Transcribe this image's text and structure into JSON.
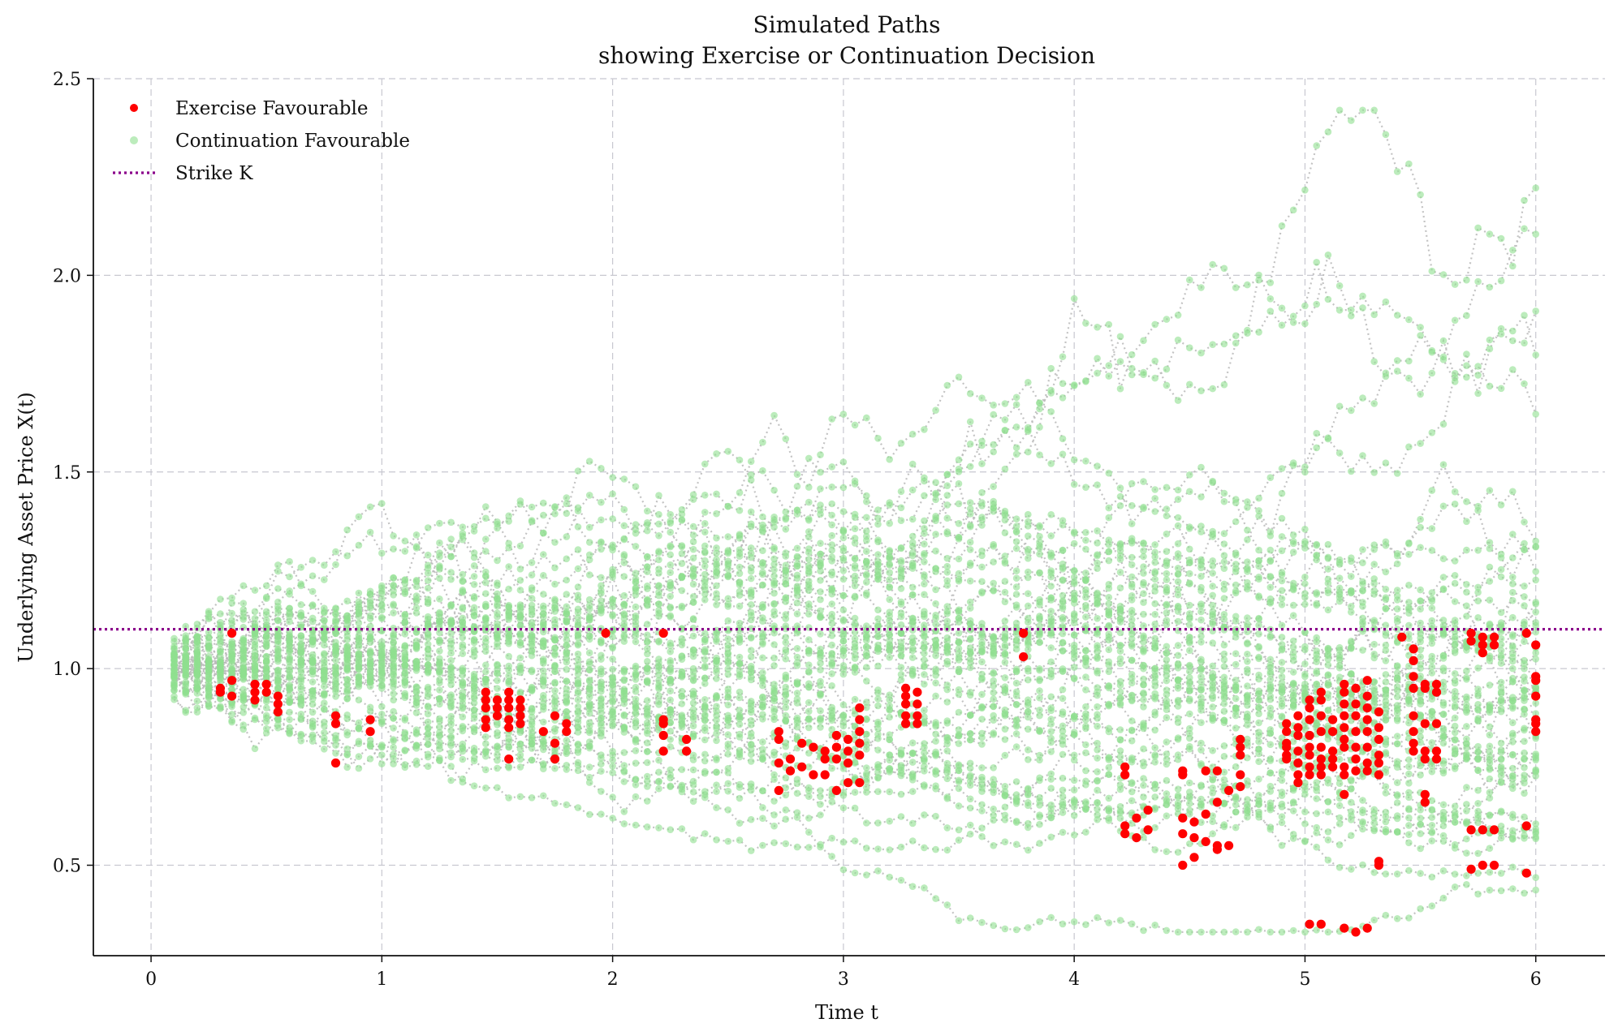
{
  "chart_data": {
    "type": "scatter",
    "title": "Simulated Paths",
    "subtitle": "showing Exercise or Continuation Decision",
    "xlabel": "Time t",
    "ylabel": "Underlying Asset Price X(t)",
    "xlim": [
      -0.25,
      6.3
    ],
    "ylim": [
      0.27,
      2.5
    ],
    "xticks": [
      0,
      1,
      2,
      3,
      4,
      5,
      6
    ],
    "xtick_labels": [
      "0",
      "1",
      "2",
      "3",
      "4",
      "5",
      "6"
    ],
    "yticks": [
      0.5,
      1.0,
      1.5,
      2.0,
      2.5
    ],
    "ytick_labels": [
      "0.5",
      "1.0",
      "1.5",
      "2.0",
      "2.5"
    ],
    "grid": true,
    "legend_position": "top-left",
    "strike": 1.1,
    "colors": {
      "exercise": "#ff0000",
      "continuation": "#90e090",
      "strike": "#8b008b",
      "path_line": "#b8b8b8",
      "grid": "#c8c8d0"
    },
    "legend": [
      {
        "label": "Exercise Favourable",
        "kind": "exercise"
      },
      {
        "label": "Continuation Favourable",
        "kind": "continuation"
      },
      {
        "label": "Strike K",
        "kind": "strike"
      }
    ],
    "time_steps": {
      "start": 0.1,
      "end": 6.0,
      "step": 0.05
    },
    "num_paths": 50,
    "exercise_points": [
      [
        0.3,
        0.95
      ],
      [
        0.3,
        0.94
      ],
      [
        0.35,
        0.97
      ],
      [
        0.35,
        0.93
      ],
      [
        0.35,
        1.09
      ],
      [
        0.45,
        0.96
      ],
      [
        0.45,
        0.94
      ],
      [
        0.45,
        0.92
      ],
      [
        0.5,
        0.96
      ],
      [
        0.5,
        0.94
      ],
      [
        0.55,
        0.93
      ],
      [
        0.55,
        0.91
      ],
      [
        0.55,
        0.89
      ],
      [
        0.8,
        0.88
      ],
      [
        0.8,
        0.86
      ],
      [
        0.8,
        0.76
      ],
      [
        0.95,
        0.87
      ],
      [
        0.95,
        0.84
      ],
      [
        1.97,
        1.09
      ],
      [
        1.45,
        0.94
      ],
      [
        1.45,
        0.92
      ],
      [
        1.45,
        0.9
      ],
      [
        1.45,
        0.87
      ],
      [
        1.45,
        0.85
      ],
      [
        1.5,
        0.92
      ],
      [
        1.5,
        0.9
      ],
      [
        1.5,
        0.88
      ],
      [
        1.55,
        0.94
      ],
      [
        1.55,
        0.92
      ],
      [
        1.55,
        0.9
      ],
      [
        1.55,
        0.87
      ],
      [
        1.55,
        0.85
      ],
      [
        1.55,
        0.77
      ],
      [
        1.6,
        0.92
      ],
      [
        1.6,
        0.9
      ],
      [
        1.6,
        0.88
      ],
      [
        1.6,
        0.86
      ],
      [
        1.7,
        0.84
      ],
      [
        1.75,
        0.88
      ],
      [
        1.75,
        0.81
      ],
      [
        1.75,
        0.77
      ],
      [
        1.8,
        0.86
      ],
      [
        1.8,
        0.84
      ],
      [
        2.22,
        1.09
      ],
      [
        2.22,
        0.87
      ],
      [
        2.22,
        0.86
      ],
      [
        2.22,
        0.83
      ],
      [
        2.22,
        0.79
      ],
      [
        2.32,
        0.82
      ],
      [
        2.32,
        0.79
      ],
      [
        2.72,
        0.84
      ],
      [
        2.72,
        0.82
      ],
      [
        2.72,
        0.76
      ],
      [
        2.72,
        0.69
      ],
      [
        2.77,
        0.77
      ],
      [
        2.77,
        0.74
      ],
      [
        2.82,
        0.81
      ],
      [
        2.82,
        0.75
      ],
      [
        2.87,
        0.8
      ],
      [
        2.87,
        0.73
      ],
      [
        2.92,
        0.79
      ],
      [
        2.92,
        0.77
      ],
      [
        2.92,
        0.73
      ],
      [
        2.97,
        0.83
      ],
      [
        2.97,
        0.8
      ],
      [
        2.97,
        0.77
      ],
      [
        2.97,
        0.69
      ],
      [
        3.02,
        0.82
      ],
      [
        3.02,
        0.79
      ],
      [
        3.02,
        0.76
      ],
      [
        3.02,
        0.71
      ],
      [
        3.07,
        0.9
      ],
      [
        3.07,
        0.87
      ],
      [
        3.07,
        0.84
      ],
      [
        3.07,
        0.81
      ],
      [
        3.07,
        0.78
      ],
      [
        3.07,
        0.71
      ],
      [
        3.27,
        0.95
      ],
      [
        3.27,
        0.93
      ],
      [
        3.27,
        0.91
      ],
      [
        3.27,
        0.88
      ],
      [
        3.27,
        0.86
      ],
      [
        3.32,
        0.94
      ],
      [
        3.32,
        0.91
      ],
      [
        3.32,
        0.88
      ],
      [
        3.32,
        0.86
      ],
      [
        3.78,
        1.09
      ],
      [
        3.78,
        1.03
      ],
      [
        4.22,
        0.75
      ],
      [
        4.22,
        0.73
      ],
      [
        4.22,
        0.6
      ],
      [
        4.22,
        0.58
      ],
      [
        4.27,
        0.62
      ],
      [
        4.27,
        0.57
      ],
      [
        4.32,
        0.64
      ],
      [
        4.32,
        0.59
      ],
      [
        4.47,
        0.74
      ],
      [
        4.47,
        0.73
      ],
      [
        4.47,
        0.62
      ],
      [
        4.47,
        0.58
      ],
      [
        4.47,
        0.5
      ],
      [
        4.52,
        0.61
      ],
      [
        4.52,
        0.57
      ],
      [
        4.52,
        0.52
      ],
      [
        4.57,
        0.74
      ],
      [
        4.57,
        0.63
      ],
      [
        4.57,
        0.56
      ],
      [
        4.62,
        0.74
      ],
      [
        4.62,
        0.66
      ],
      [
        4.62,
        0.55
      ],
      [
        4.62,
        0.54
      ],
      [
        4.67,
        0.69
      ],
      [
        4.67,
        0.55
      ],
      [
        4.72,
        0.82
      ],
      [
        4.72,
        0.8
      ],
      [
        4.72,
        0.78
      ],
      [
        4.72,
        0.73
      ],
      [
        4.72,
        0.7
      ],
      [
        4.92,
        0.86
      ],
      [
        4.92,
        0.84
      ],
      [
        4.92,
        0.81
      ],
      [
        4.92,
        0.8
      ],
      [
        4.92,
        0.78
      ],
      [
        4.92,
        0.77
      ],
      [
        4.97,
        0.88
      ],
      [
        4.97,
        0.85
      ],
      [
        4.97,
        0.83
      ],
      [
        4.97,
        0.79
      ],
      [
        4.97,
        0.76
      ],
      [
        4.97,
        0.73
      ],
      [
        4.97,
        0.71
      ],
      [
        5.02,
        0.92
      ],
      [
        5.02,
        0.9
      ],
      [
        5.02,
        0.87
      ],
      [
        5.02,
        0.83
      ],
      [
        5.02,
        0.8
      ],
      [
        5.02,
        0.78
      ],
      [
        5.02,
        0.75
      ],
      [
        5.02,
        0.73
      ],
      [
        5.02,
        0.35
      ],
      [
        5.07,
        0.94
      ],
      [
        5.07,
        0.92
      ],
      [
        5.07,
        0.88
      ],
      [
        5.07,
        0.84
      ],
      [
        5.07,
        0.8
      ],
      [
        5.07,
        0.77
      ],
      [
        5.07,
        0.75
      ],
      [
        5.07,
        0.73
      ],
      [
        5.07,
        0.35
      ],
      [
        5.12,
        0.87
      ],
      [
        5.12,
        0.84
      ],
      [
        5.12,
        0.79
      ],
      [
        5.12,
        0.77
      ],
      [
        5.12,
        0.75
      ],
      [
        5.17,
        0.96
      ],
      [
        5.17,
        0.94
      ],
      [
        5.17,
        0.91
      ],
      [
        5.17,
        0.88
      ],
      [
        5.17,
        0.85
      ],
      [
        5.17,
        0.82
      ],
      [
        5.17,
        0.8
      ],
      [
        5.17,
        0.75
      ],
      [
        5.17,
        0.73
      ],
      [
        5.17,
        0.68
      ],
      [
        5.17,
        0.34
      ],
      [
        5.22,
        0.95
      ],
      [
        5.22,
        0.91
      ],
      [
        5.22,
        0.88
      ],
      [
        5.22,
        0.84
      ],
      [
        5.22,
        0.8
      ],
      [
        5.22,
        0.77
      ],
      [
        5.22,
        0.74
      ],
      [
        5.22,
        0.33
      ],
      [
        5.27,
        0.97
      ],
      [
        5.27,
        0.93
      ],
      [
        5.27,
        0.9
      ],
      [
        5.27,
        0.87
      ],
      [
        5.27,
        0.84
      ],
      [
        5.27,
        0.8
      ],
      [
        5.27,
        0.76
      ],
      [
        5.27,
        0.74
      ],
      [
        5.27,
        0.34
      ],
      [
        5.32,
        0.89
      ],
      [
        5.32,
        0.85
      ],
      [
        5.32,
        0.82
      ],
      [
        5.32,
        0.78
      ],
      [
        5.32,
        0.76
      ],
      [
        5.32,
        0.73
      ],
      [
        5.32,
        0.51
      ],
      [
        5.32,
        0.5
      ],
      [
        5.42,
        1.08
      ],
      [
        5.47,
        1.05
      ],
      [
        5.47,
        1.02
      ],
      [
        5.47,
        0.98
      ],
      [
        5.47,
        0.95
      ],
      [
        5.47,
        0.88
      ],
      [
        5.47,
        0.84
      ],
      [
        5.47,
        0.81
      ],
      [
        5.47,
        0.79
      ],
      [
        5.52,
        0.96
      ],
      [
        5.52,
        0.95
      ],
      [
        5.52,
        0.86
      ],
      [
        5.52,
        0.79
      ],
      [
        5.52,
        0.77
      ],
      [
        5.52,
        0.68
      ],
      [
        5.52,
        0.66
      ],
      [
        5.57,
        0.96
      ],
      [
        5.57,
        0.94
      ],
      [
        5.57,
        0.86
      ],
      [
        5.57,
        0.79
      ],
      [
        5.57,
        0.77
      ],
      [
        5.72,
        1.09
      ],
      [
        5.72,
        1.07
      ],
      [
        5.72,
        0.59
      ],
      [
        5.72,
        0.49
      ],
      [
        5.77,
        1.08
      ],
      [
        5.77,
        1.06
      ],
      [
        5.77,
        1.04
      ],
      [
        5.77,
        0.59
      ],
      [
        5.77,
        0.5
      ],
      [
        5.82,
        1.08
      ],
      [
        5.82,
        1.06
      ],
      [
        5.82,
        0.59
      ],
      [
        5.82,
        0.5
      ],
      [
        5.96,
        1.09
      ],
      [
        5.96,
        0.6
      ],
      [
        5.96,
        0.48
      ],
      [
        6.0,
        1.06
      ],
      [
        6.0,
        0.98
      ],
      [
        6.0,
        0.97
      ],
      [
        6.0,
        0.93
      ],
      [
        6.0,
        0.87
      ],
      [
        6.0,
        0.86
      ],
      [
        6.0,
        0.84
      ]
    ]
  }
}
